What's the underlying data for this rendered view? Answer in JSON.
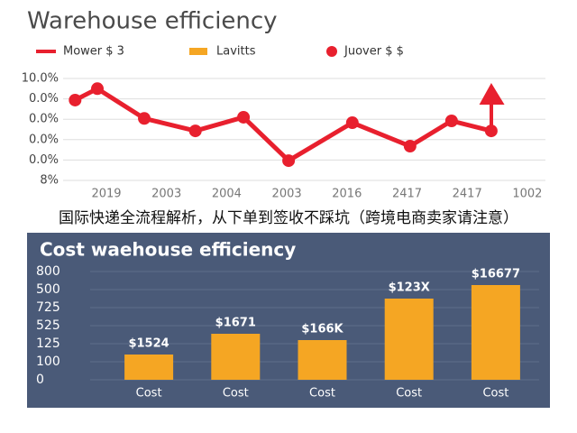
{
  "caption": "国际快递全流程解析，从下单到签收不踩坑（跨境电商卖家请注意）",
  "chart_data": [
    {
      "type": "line",
      "title": "Warehouse efficiency",
      "legend": [
        {
          "name": "Mower $ 3",
          "color": "#e8202e",
          "shape": "line"
        },
        {
          "name": "Lavitts",
          "color": "#f5a623",
          "shape": "rect"
        },
        {
          "name": "Juover $ $",
          "color": "#e8202e",
          "shape": "dot"
        }
      ],
      "x": [
        -0.52,
        -0.15,
        0.63,
        1.48,
        2.28,
        3.03,
        4.09,
        5.05,
        5.74,
        6.4
      ],
      "values": [
        3.94,
        4.5,
        3.04,
        2.43,
        3.1,
        0.97,
        2.83,
        1.68,
        2.92,
        2.43
      ],
      "color": "#e8202e",
      "xlim": [
        -0.7,
        7.3
      ],
      "xticks": [
        {
          "value": 0,
          "label": "2019"
        },
        {
          "value": 1,
          "label": "2003"
        },
        {
          "value": 2,
          "label": "2004"
        },
        {
          "value": 3,
          "label": "2003"
        },
        {
          "value": 4,
          "label": "2016"
        },
        {
          "value": 5,
          "label": "2417"
        },
        {
          "value": 6,
          "label": "2417"
        },
        {
          "value": 7,
          "label": "1002"
        }
      ],
      "ylim": [
        0,
        5
      ],
      "yticks": [
        {
          "value": 5,
          "label": "10.0%"
        },
        {
          "value": 4,
          "label": "0.0%"
        },
        {
          "value": 3,
          "label": "0.0%"
        },
        {
          "value": 2,
          "label": "0.0%"
        },
        {
          "value": 1,
          "label": "0.0%"
        },
        {
          "value": 0,
          "label": "8%"
        }
      ],
      "grid": true
    },
    {
      "type": "bar",
      "title": "Cost waehouse efficiency",
      "categories": [
        "Cost",
        "Cost",
        "Cost",
        "Cost",
        "Cost"
      ],
      "values": [
        1.4,
        2.55,
        2.2,
        4.5,
        5.25
      ],
      "value_labels": [
        "$1524",
        "$1671",
        "$166K",
        "$123X",
        "$16677"
      ],
      "color": "#f5a623",
      "ylim": [
        0,
        6
      ],
      "yticks": [
        {
          "value": 6,
          "label": "800"
        },
        {
          "value": 5,
          "label": "500"
        },
        {
          "value": 4,
          "label": "725"
        },
        {
          "value": 3,
          "label": "525"
        },
        {
          "value": 2,
          "label": "125"
        },
        {
          "value": 1,
          "label": "100"
        },
        0
      ],
      "grid": true
    }
  ]
}
